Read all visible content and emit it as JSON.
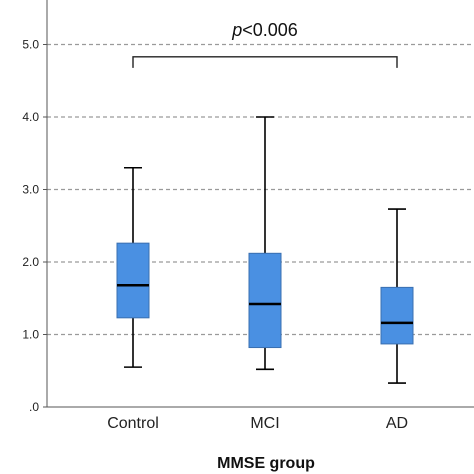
{
  "chart_data": {
    "type": "box",
    "title": "",
    "xlabel": "MMSE group",
    "ylabel": "",
    "ylim": [
      0,
      5.5
    ],
    "y_ticks": [
      {
        "value": 0,
        "label": ".0"
      },
      {
        "value": 1,
        "label": "1.0"
      },
      {
        "value": 2,
        "label": "2.0"
      },
      {
        "value": 3,
        "label": "3.0"
      },
      {
        "value": 4,
        "label": "4.0"
      },
      {
        "value": 5,
        "label": "5.0"
      }
    ],
    "grid": "horizontal-dashed",
    "box_color": "#4a90e2",
    "categories": [
      "Control",
      "MCI",
      "AD"
    ],
    "boxes": [
      {
        "category": "Control",
        "min": 0.55,
        "q1": 1.23,
        "median": 1.68,
        "q3": 2.26,
        "max": 3.3
      },
      {
        "category": "MCI",
        "min": 0.52,
        "q1": 0.82,
        "median": 1.42,
        "q3": 2.12,
        "max": 4.0
      },
      {
        "category": "AD",
        "min": 0.33,
        "q1": 0.87,
        "median": 1.16,
        "q3": 1.65,
        "max": 2.73
      }
    ],
    "annotation": {
      "p_symbol": "p",
      "text": "<0.006",
      "from": "Control",
      "to": "AD",
      "y": 4.83
    }
  }
}
